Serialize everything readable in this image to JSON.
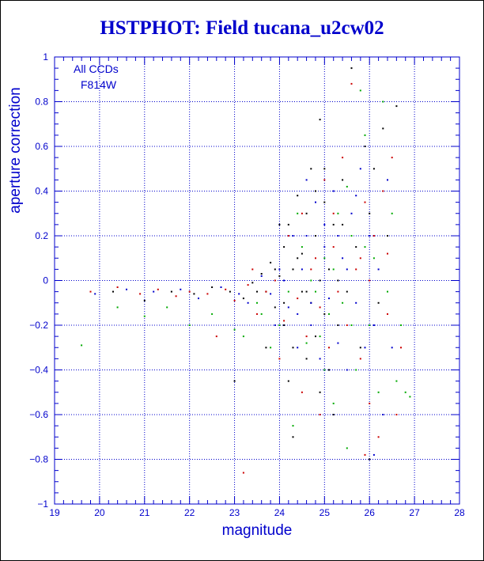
{
  "chart_data": {
    "type": "scatter",
    "title": "HSTPHOT: Field tucana_u2cw02",
    "xlabel": "magnitude",
    "ylabel": "aperture correction",
    "xlim": [
      19,
      28
    ],
    "ylim": [
      -1,
      1
    ],
    "grid": true,
    "xticks": [
      "19",
      "20",
      "21",
      "22",
      "23",
      "24",
      "25",
      "26",
      "27",
      "28"
    ],
    "yticks": [
      "1",
      "0.8",
      "0.6",
      "0.4",
      "0.2",
      "0",
      "−0.2",
      "−0.4",
      "−0.6",
      "−0.8",
      "−1"
    ],
    "annotations": [
      "All CCDs",
      "F814W"
    ],
    "colors": {
      "axis": "#0000cc",
      "title": "#0000cc",
      "point_colors": [
        "#000000",
        "#cc0000",
        "#00aa00",
        "#0000cc"
      ]
    },
    "series": [
      {
        "color": "#000000",
        "points": [
          [
            20.3,
            -0.05
          ],
          [
            21.0,
            -0.09
          ],
          [
            21.6,
            -0.05
          ],
          [
            22.1,
            -0.06
          ],
          [
            22.5,
            -0.03
          ],
          [
            22.9,
            -0.05
          ],
          [
            23.2,
            -0.08
          ],
          [
            23.4,
            -0.01
          ],
          [
            23.6,
            0.03
          ],
          [
            23.7,
            -0.05
          ],
          [
            23.8,
            0.08
          ],
          [
            23.9,
            -0.12
          ],
          [
            24.0,
            0.02
          ],
          [
            24.1,
            0.15
          ],
          [
            24.1,
            -0.2
          ],
          [
            24.2,
            0.25
          ],
          [
            24.3,
            0.05
          ],
          [
            24.3,
            -0.3
          ],
          [
            24.4,
            0.38
          ],
          [
            24.5,
            -0.05
          ],
          [
            24.5,
            0.12
          ],
          [
            24.6,
            0.3
          ],
          [
            24.6,
            -0.35
          ],
          [
            24.7,
            0.5
          ],
          [
            24.7,
            -0.1
          ],
          [
            24.8,
            0.2
          ],
          [
            24.8,
            -0.25
          ],
          [
            24.9,
            0.72
          ],
          [
            24.9,
            0.0
          ],
          [
            25.0,
            0.35
          ],
          [
            25.0,
            -0.15
          ],
          [
            25.1,
            0.05
          ],
          [
            25.1,
            -0.4
          ],
          [
            25.2,
            0.25
          ],
          [
            25.3,
            -0.2
          ],
          [
            25.4,
            0.45
          ],
          [
            25.5,
            -0.05
          ],
          [
            25.6,
            0.95
          ],
          [
            25.7,
            0.15
          ],
          [
            25.8,
            -0.3
          ],
          [
            25.9,
            0.6
          ],
          [
            26.0,
            0.3
          ],
          [
            26.0,
            -0.8
          ],
          [
            26.1,
            0.5
          ],
          [
            26.2,
            -0.1
          ],
          [
            26.3,
            0.68
          ],
          [
            26.4,
            0.2
          ],
          [
            26.6,
            0.78
          ],
          [
            23.7,
            -0.3
          ],
          [
            24.2,
            -0.45
          ],
          [
            24.3,
            -0.7
          ],
          [
            24.9,
            -0.5
          ],
          [
            25.2,
            -0.6
          ],
          [
            23.0,
            -0.45
          ],
          [
            24.0,
            0.25
          ],
          [
            24.4,
            0.1
          ],
          [
            24.8,
            0.4
          ],
          [
            25.3,
            0.0
          ],
          [
            25.6,
            -0.2
          ],
          [
            24.6,
            -0.05
          ],
          [
            24.1,
            -0.1
          ],
          [
            23.5,
            -0.05
          ],
          [
            23.9,
            0.05
          ],
          [
            25.0,
            0.5
          ],
          [
            25.4,
            0.25
          ]
        ]
      },
      {
        "color": "#cc0000",
        "points": [
          [
            19.8,
            -0.05
          ],
          [
            20.4,
            -0.03
          ],
          [
            20.9,
            -0.06
          ],
          [
            21.3,
            -0.04
          ],
          [
            21.7,
            -0.07
          ],
          [
            22.0,
            -0.05
          ],
          [
            22.4,
            -0.06
          ],
          [
            22.8,
            -0.04
          ],
          [
            23.0,
            -0.09
          ],
          [
            23.2,
            -0.86
          ],
          [
            23.3,
            -0.02
          ],
          [
            23.5,
            -0.15
          ],
          [
            23.7,
            -0.05
          ],
          [
            23.9,
            0.0
          ],
          [
            24.1,
            -0.18
          ],
          [
            24.2,
            0.2
          ],
          [
            24.4,
            -0.08
          ],
          [
            24.5,
            0.3
          ],
          [
            24.6,
            -0.25
          ],
          [
            24.8,
            0.1
          ],
          [
            24.9,
            -0.12
          ],
          [
            25.0,
            0.45
          ],
          [
            25.1,
            -0.3
          ],
          [
            25.2,
            0.15
          ],
          [
            25.3,
            -0.05
          ],
          [
            25.4,
            0.55
          ],
          [
            25.5,
            -0.2
          ],
          [
            25.6,
            0.88
          ],
          [
            25.7,
            0.05
          ],
          [
            25.8,
            -0.35
          ],
          [
            25.9,
            0.35
          ],
          [
            26.0,
            -0.55
          ],
          [
            26.1,
            0.2
          ],
          [
            26.2,
            -0.7
          ],
          [
            26.3,
            0.4
          ],
          [
            26.4,
            -0.15
          ],
          [
            26.5,
            0.55
          ],
          [
            26.6,
            -0.6
          ],
          [
            26.7,
            -0.3
          ],
          [
            26.4,
            0.12
          ],
          [
            25.9,
            -0.78
          ],
          [
            24.9,
            -0.6
          ],
          [
            24.5,
            -0.5
          ],
          [
            24.7,
            0.05
          ],
          [
            25.2,
            0.3
          ],
          [
            25.8,
            0.1
          ],
          [
            26.0,
            0.0
          ],
          [
            24.0,
            -0.35
          ],
          [
            22.6,
            -0.25
          ],
          [
            23.4,
            0.05
          ]
        ]
      },
      {
        "color": "#00aa00",
        "points": [
          [
            19.6,
            -0.29
          ],
          [
            20.4,
            -0.12
          ],
          [
            21.0,
            -0.16
          ],
          [
            21.5,
            -0.12
          ],
          [
            22.0,
            -0.2
          ],
          [
            22.5,
            -0.15
          ],
          [
            23.0,
            -0.22
          ],
          [
            23.2,
            -0.25
          ],
          [
            23.5,
            -0.1
          ],
          [
            23.8,
            -0.3
          ],
          [
            24.0,
            -0.2
          ],
          [
            24.2,
            -0.05
          ],
          [
            24.3,
            -0.65
          ],
          [
            24.5,
            0.15
          ],
          [
            24.6,
            -0.28
          ],
          [
            24.8,
            -0.05
          ],
          [
            25.0,
            0.1
          ],
          [
            25.1,
            -0.15
          ],
          [
            25.2,
            -0.55
          ],
          [
            25.3,
            0.3
          ],
          [
            25.4,
            -0.1
          ],
          [
            25.5,
            0.42
          ],
          [
            25.6,
            0.2
          ],
          [
            25.7,
            -0.4
          ],
          [
            25.8,
            0.85
          ],
          [
            25.9,
            0.65
          ],
          [
            26.0,
            -0.2
          ],
          [
            26.1,
            0.1
          ],
          [
            26.2,
            -0.5
          ],
          [
            26.3,
            0.8
          ],
          [
            26.4,
            -0.05
          ],
          [
            26.5,
            0.3
          ],
          [
            26.6,
            -0.45
          ],
          [
            26.8,
            -0.5
          ],
          [
            26.9,
            -0.52
          ],
          [
            25.5,
            -0.75
          ],
          [
            24.7,
            0.0
          ],
          [
            24.4,
            0.3
          ],
          [
            25.0,
            -0.4
          ],
          [
            25.6,
            -0.2
          ],
          [
            23.6,
            -0.15
          ],
          [
            24.9,
            -0.25
          ],
          [
            25.2,
            0.05
          ],
          [
            25.9,
            0.15
          ],
          [
            26.7,
            -0.2
          ]
        ]
      },
      {
        "color": "#0000cc",
        "points": [
          [
            19.9,
            -0.06
          ],
          [
            20.6,
            -0.04
          ],
          [
            21.2,
            -0.05
          ],
          [
            21.8,
            -0.04
          ],
          [
            22.2,
            -0.08
          ],
          [
            22.7,
            -0.03
          ],
          [
            23.1,
            -0.06
          ],
          [
            23.3,
            -0.1
          ],
          [
            23.6,
            0.02
          ],
          [
            23.8,
            -0.06
          ],
          [
            24.0,
            0.05
          ],
          [
            24.2,
            -0.12
          ],
          [
            24.3,
            0.2
          ],
          [
            24.4,
            -0.3
          ],
          [
            24.5,
            0.05
          ],
          [
            24.6,
            0.2
          ],
          [
            24.7,
            -0.2
          ],
          [
            24.8,
            0.35
          ],
          [
            24.9,
            -0.35
          ],
          [
            25.0,
            0.15
          ],
          [
            25.1,
            -0.08
          ],
          [
            25.2,
            0.4
          ],
          [
            25.3,
            -0.28
          ],
          [
            25.4,
            0.1
          ],
          [
            25.5,
            -0.4
          ],
          [
            25.6,
            0.3
          ],
          [
            25.7,
            -0.1
          ],
          [
            25.8,
            0.5
          ],
          [
            25.9,
            -0.3
          ],
          [
            26.0,
            0.2
          ],
          [
            26.1,
            -0.2
          ],
          [
            26.2,
            0.05
          ],
          [
            26.3,
            -0.6
          ],
          [
            26.4,
            0.45
          ],
          [
            26.1,
            -0.78
          ],
          [
            24.7,
            -0.1
          ],
          [
            24.1,
            0.0
          ],
          [
            25.0,
            0.25
          ],
          [
            25.5,
            0.05
          ],
          [
            24.4,
            -0.15
          ],
          [
            23.9,
            -0.2
          ],
          [
            25.3,
            0.2
          ],
          [
            26.5,
            -0.3
          ],
          [
            24.6,
            0.45
          ],
          [
            25.7,
            0.38
          ]
        ]
      }
    ]
  }
}
